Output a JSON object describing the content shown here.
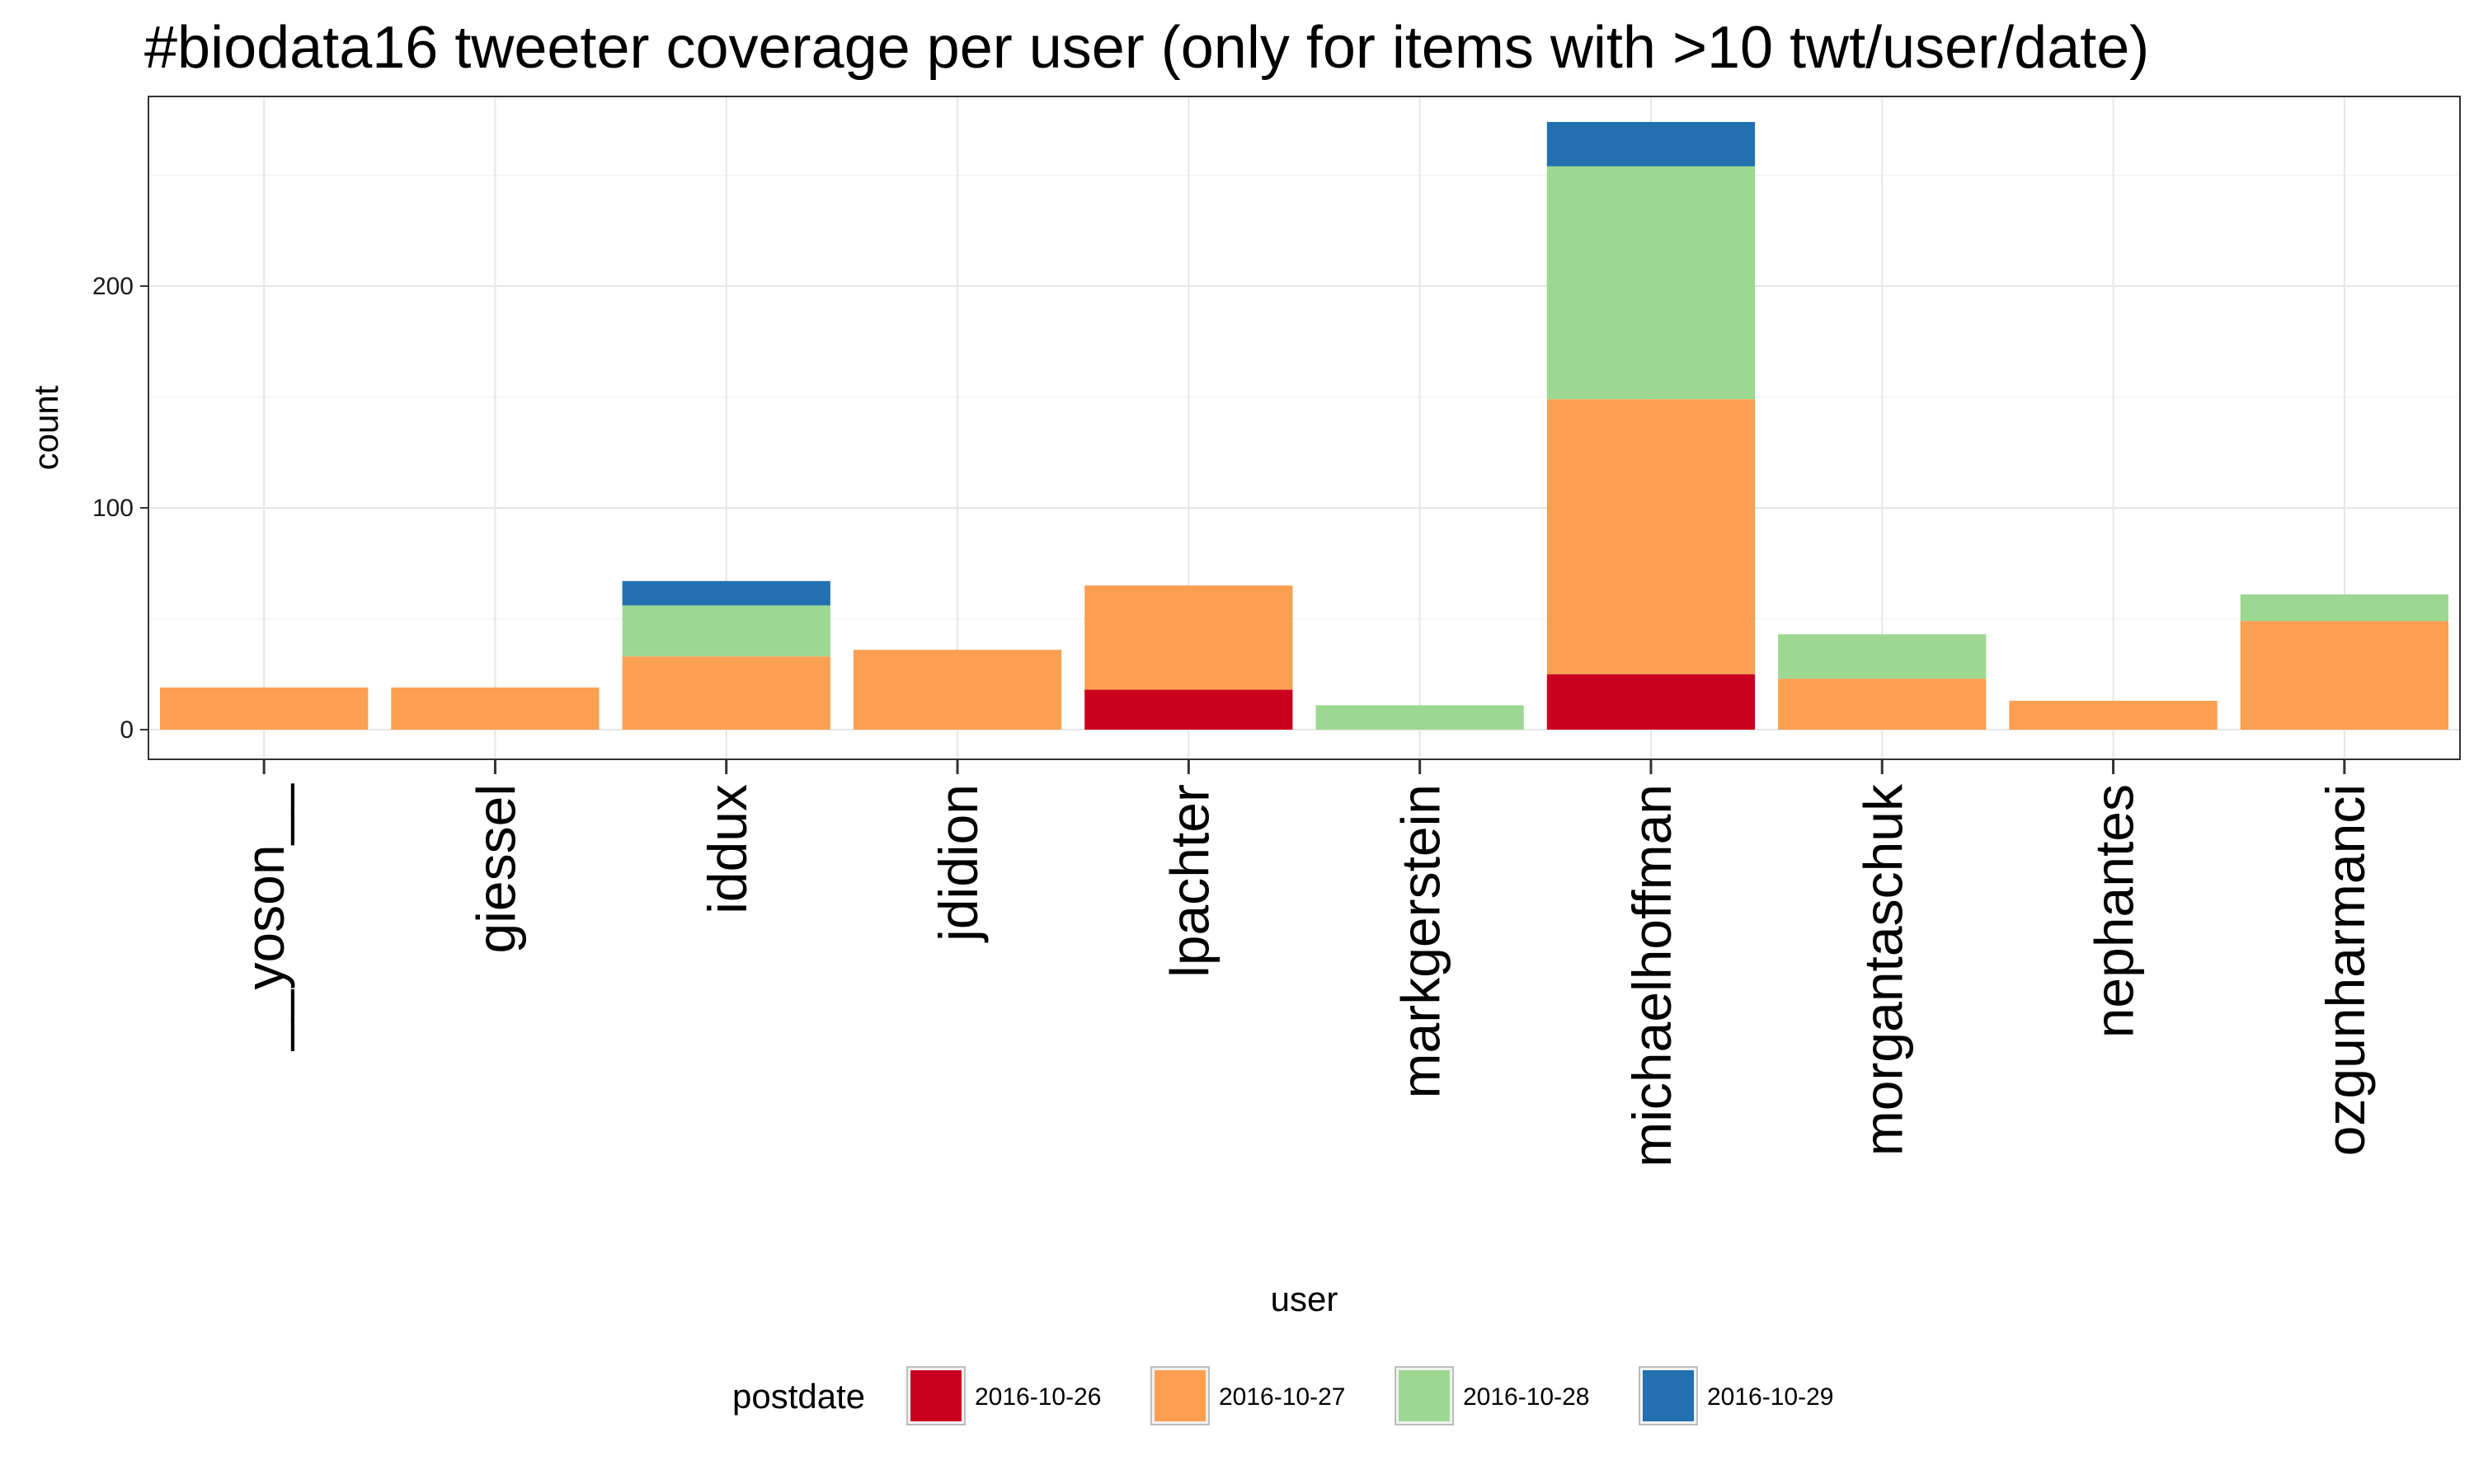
{
  "chart_data": {
    "type": "bar",
    "stacked": true,
    "title": "#biodata16 tweeter coverage per user (only for items with >10 twt/user/date)",
    "xlabel": "user",
    "ylabel": "count",
    "ylim": [
      0,
      285
    ],
    "yticks": [
      0,
      100,
      200
    ],
    "grid": true,
    "legend_position": "bottom",
    "legend_title": "postdate",
    "categories": [
      "__yoson__",
      "giessel",
      "iddux",
      "jdidion",
      "lpachter",
      "markgerstein",
      "michaelhoffman",
      "morgantaschuk",
      "nephantes",
      "ozgunharmanci"
    ],
    "series": [
      {
        "name": "2016-10-26",
        "color": "#ca0020",
        "values": [
          0,
          0,
          0,
          0,
          18,
          0,
          25,
          0,
          0,
          0
        ]
      },
      {
        "name": "2016-10-27",
        "color": "#fb9f51",
        "values": [
          19,
          19,
          33,
          36,
          47,
          0,
          124,
          23,
          13,
          49
        ]
      },
      {
        "name": "2016-10-28",
        "color": "#9dd892",
        "values": [
          0,
          0,
          23,
          0,
          0,
          11,
          105,
          20,
          0,
          12
        ]
      },
      {
        "name": "2016-10-29",
        "color": "#2270b0",
        "values": [
          0,
          0,
          11,
          0,
          0,
          0,
          20,
          0,
          0,
          0
        ]
      }
    ]
  }
}
